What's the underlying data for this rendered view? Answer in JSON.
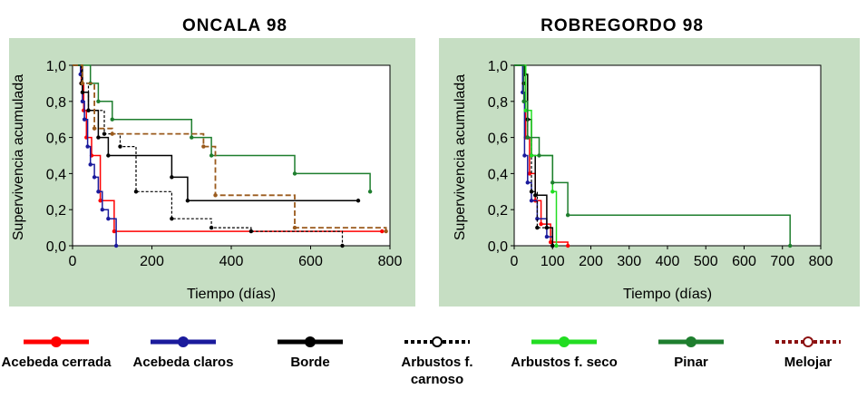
{
  "chart_data": [
    {
      "type": "line",
      "subtype": "kaplan-meier step",
      "title": "ONCALA 98",
      "xlabel": "Tiempo (días)",
      "ylabel": "Supervivencia acumulada",
      "xlim": [
        0,
        800
      ],
      "ylim": [
        0,
        1
      ],
      "xticks": [
        "0",
        "200",
        "400",
        "600",
        "800"
      ],
      "yticks": [
        "0,0",
        "0,2",
        "0,4",
        "0,6",
        "0,8",
        "1,0"
      ],
      "xtick_values": [
        0,
        200,
        400,
        600,
        800
      ],
      "ytick_values": [
        0,
        0.2,
        0.4,
        0.6,
        0.8,
        1.0
      ],
      "series": [
        {
          "name": "Acebeda cerrada",
          "key": "red",
          "x": [
            22,
            28,
            35,
            48,
            70,
            105,
            780
          ],
          "y": [
            0.9,
            0.75,
            0.6,
            0.5,
            0.25,
            0.08,
            0.08
          ]
        },
        {
          "name": "Acebeda claros",
          "key": "navy",
          "x": [
            20,
            25,
            30,
            38,
            45,
            55,
            65,
            75,
            90,
            110
          ],
          "y": [
            0.95,
            0.8,
            0.7,
            0.55,
            0.45,
            0.38,
            0.3,
            0.2,
            0.15,
            0.0
          ]
        },
        {
          "name": "Borde",
          "key": "black",
          "x": [
            25,
            40,
            65,
            90,
            250,
            290,
            720
          ],
          "y": [
            0.85,
            0.75,
            0.6,
            0.5,
            0.38,
            0.25,
            0.25
          ]
        },
        {
          "name": "Arbustos f. carnoso",
          "key": "dotblack",
          "x": [
            22,
            40,
            80,
            120,
            160,
            250,
            350,
            450,
            680
          ],
          "y": [
            0.9,
            0.75,
            0.62,
            0.55,
            0.3,
            0.15,
            0.1,
            0.08,
            0.0
          ]
        },
        {
          "name": "Pinar",
          "key": "dkgreen",
          "x": [
            45,
            65,
            100,
            300,
            350,
            560,
            750
          ],
          "y": [
            0.9,
            0.8,
            0.7,
            0.6,
            0.5,
            0.4,
            0.3
          ]
        },
        {
          "name": "Melojar",
          "key": "brown",
          "x": [
            25,
            55,
            100,
            330,
            360,
            560,
            790
          ],
          "y": [
            0.9,
            0.65,
            0.62,
            0.55,
            0.28,
            0.1,
            0.08
          ]
        }
      ]
    },
    {
      "type": "line",
      "subtype": "kaplan-meier step",
      "title": "ROBREGORDO 98",
      "xlabel": "Tiempo (días)",
      "ylabel": "Supervivencia acumulada",
      "xlim": [
        0,
        800
      ],
      "ylim": [
        0,
        1
      ],
      "xticks": [
        "0",
        "100",
        "200",
        "300",
        "400",
        "500",
        "600",
        "700",
        "800"
      ],
      "yticks": [
        "0,0",
        "0,2",
        "0,4",
        "0,6",
        "0,8",
        "1,0"
      ],
      "xtick_values": [
        0,
        100,
        200,
        300,
        400,
        500,
        600,
        700,
        800
      ],
      "ytick_values": [
        0,
        0.2,
        0.4,
        0.6,
        0.8,
        1.0
      ],
      "series": [
        {
          "name": "Acebeda cerrada",
          "key": "red",
          "x": [
            25,
            30,
            40,
            55,
            70,
            95,
            140
          ],
          "y": [
            0.9,
            0.6,
            0.4,
            0.25,
            0.12,
            0.02,
            0.0
          ]
        },
        {
          "name": "Acebeda claros",
          "key": "navy",
          "x": [
            22,
            27,
            35,
            45,
            60,
            85,
            100
          ],
          "y": [
            0.85,
            0.5,
            0.35,
            0.25,
            0.15,
            0.05,
            0.0
          ]
        },
        {
          "name": "Borde",
          "key": "black",
          "x": [
            28,
            35,
            45,
            55,
            85,
            100
          ],
          "y": [
            0.95,
            0.7,
            0.5,
            0.28,
            0.1,
            0.0
          ]
        },
        {
          "name": "Arbustos f. carnoso",
          "key": "dotblack",
          "x": [
            25,
            35,
            45,
            60,
            100
          ],
          "y": [
            0.9,
            0.6,
            0.3,
            0.1,
            0.0
          ]
        },
        {
          "name": "Arbustos f. seco",
          "key": "green",
          "x": [
            30,
            45,
            100,
            110
          ],
          "y": [
            0.75,
            0.5,
            0.3,
            0.0
          ]
        },
        {
          "name": "Pinar",
          "key": "dkgreen",
          "x": [
            25,
            35,
            65,
            100,
            140,
            720
          ],
          "y": [
            0.8,
            0.6,
            0.5,
            0.35,
            0.17,
            0.0
          ]
        }
      ]
    }
  ],
  "legend": [
    {
      "label": "Acebeda cerrada",
      "key": "red",
      "style": "solid"
    },
    {
      "label": "Acebeda claros",
      "key": "navy",
      "style": "solid"
    },
    {
      "label": "Borde",
      "key": "black",
      "style": "solid"
    },
    {
      "label": "Arbustos f. carnoso",
      "key": "dotblack",
      "style": "dotted"
    },
    {
      "label": "Arbustos f. seco",
      "key": "green",
      "style": "solid"
    },
    {
      "label": "Pinar",
      "key": "dkgreen",
      "style": "solid"
    },
    {
      "label": "Melojar",
      "key": "brown",
      "style": "dotted"
    }
  ],
  "colors": {
    "panel_bg": "#c6dec3",
    "plot_bg": "#ffffff",
    "red": "#ff0000",
    "navy": "#1a1a9c",
    "black": "#000000",
    "dotblack": "#000000",
    "green": "#22dd22",
    "dkgreen": "#1e7e2e",
    "brown": "#9a5a1c",
    "melojar_legend": "#8b1010"
  }
}
